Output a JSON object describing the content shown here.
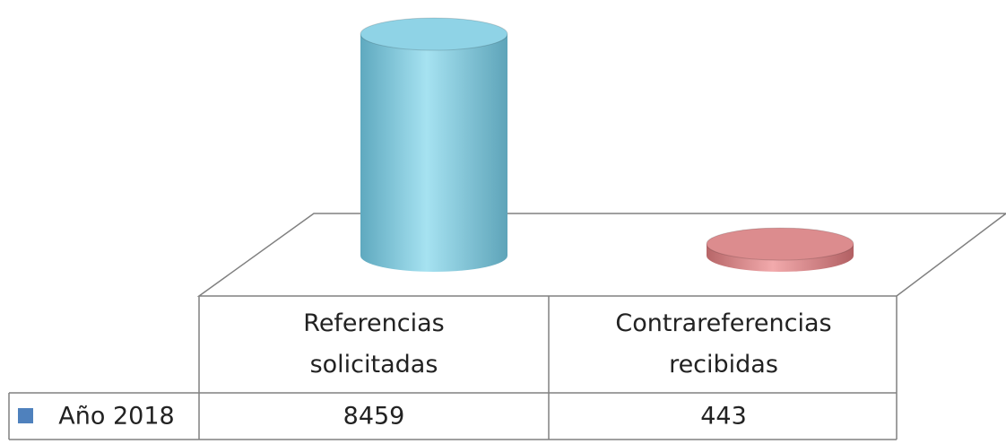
{
  "chart_data": {
    "type": "cylinder3d",
    "categories": [
      "Referencias solicitadas",
      "Contrareferencias recibidas"
    ],
    "series": [
      {
        "name": "Año 2018",
        "color": "#4f81bd",
        "values": [
          8459,
          443
        ],
        "colors": [
          "#8fd3e6",
          "#dc8c8e"
        ]
      }
    ]
  }
}
